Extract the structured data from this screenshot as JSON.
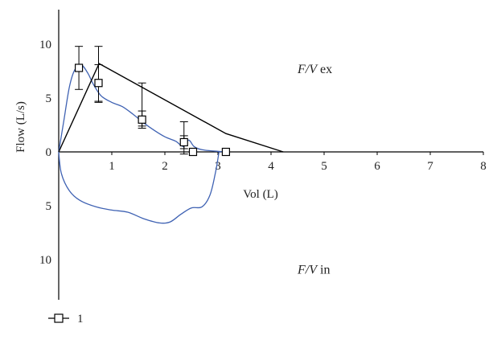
{
  "chart_data": {
    "type": "line",
    "xlabel": "Vol (L)",
    "ylabel": "Flow (L/s)",
    "xlim": [
      0,
      8
    ],
    "ylim": [
      -13,
      13.5
    ],
    "x_ticks": [
      1,
      2,
      3,
      4,
      5,
      6,
      7,
      8
    ],
    "y_ticks": [
      {
        "value": 10,
        "label": "10"
      },
      {
        "value": 5,
        "label": "5"
      },
      {
        "value": 0,
        "label": "0"
      },
      {
        "value": -5,
        "label": "5"
      },
      {
        "value": -10,
        "label": "10"
      }
    ],
    "annotations": [
      {
        "text": "F/V ex",
        "italic_part": "F/V",
        "plain_part": " ex",
        "x": 4.5,
        "y": 7.3
      },
      {
        "text": "F/V in",
        "italic_part": "F/V",
        "plain_part": " in",
        "x": 4.5,
        "y": -11.3
      }
    ],
    "legend": {
      "position": "bottom-left",
      "entries": [
        "1"
      ]
    },
    "series": [
      {
        "name": "1",
        "kind": "markers",
        "marker": "square",
        "points": [
          {
            "x": 0.38,
            "y": 7.8,
            "err": 2.0
          },
          {
            "x": 0.75,
            "y": 6.4,
            "err": 1.7
          },
          {
            "x": 1.57,
            "y": 3.0,
            "err": 0.8
          },
          {
            "x": 2.36,
            "y": 0.9,
            "err": 0.6
          },
          {
            "x": 2.53,
            "y": 0.0,
            "err": 0
          },
          {
            "x": 3.15,
            "y": 0.0,
            "err": 0
          }
        ],
        "extra_errorbars": [
          {
            "x": 0.75,
            "y": 7.2,
            "err": 2.6
          },
          {
            "x": 1.57,
            "y": 4.4,
            "err": 2.0
          },
          {
            "x": 2.36,
            "y": 1.3,
            "err": 1.5
          }
        ]
      },
      {
        "name": "",
        "kind": "line",
        "color": "#000000",
        "points": [
          [
            0,
            0
          ],
          [
            0.76,
            8.2
          ],
          [
            3.15,
            1.7
          ],
          [
            4.23,
            0
          ]
        ]
      },
      {
        "name": "",
        "kind": "loop",
        "color": "#3f62b3",
        "expiratory": [
          [
            0,
            0
          ],
          [
            0.1,
            3.0
          ],
          [
            0.2,
            6.0
          ],
          [
            0.3,
            7.6
          ],
          [
            0.42,
            8.1
          ],
          [
            0.55,
            7.3
          ],
          [
            0.65,
            6.3
          ],
          [
            0.8,
            5.2
          ],
          [
            1.0,
            4.6
          ],
          [
            1.2,
            4.2
          ],
          [
            1.4,
            3.5
          ],
          [
            1.6,
            2.7
          ],
          [
            1.8,
            2.0
          ],
          [
            2.0,
            1.4
          ],
          [
            2.2,
            1.0
          ],
          [
            2.35,
            0.5
          ],
          [
            2.45,
            1.1
          ],
          [
            2.55,
            0.5
          ],
          [
            2.7,
            0.2
          ],
          [
            3.0,
            0.05
          ],
          [
            3.15,
            0
          ]
        ],
        "inspiratory": [
          [
            0,
            0
          ],
          [
            0.05,
            -2.0
          ],
          [
            0.2,
            -3.6
          ],
          [
            0.4,
            -4.5
          ],
          [
            0.7,
            -5.1
          ],
          [
            1.0,
            -5.4
          ],
          [
            1.3,
            -5.6
          ],
          [
            1.6,
            -6.2
          ],
          [
            1.9,
            -6.6
          ],
          [
            2.1,
            -6.5
          ],
          [
            2.3,
            -5.8
          ],
          [
            2.5,
            -5.2
          ],
          [
            2.7,
            -5.1
          ],
          [
            2.85,
            -4.0
          ],
          [
            2.95,
            -2.0
          ],
          [
            3.02,
            0
          ]
        ]
      }
    ]
  }
}
